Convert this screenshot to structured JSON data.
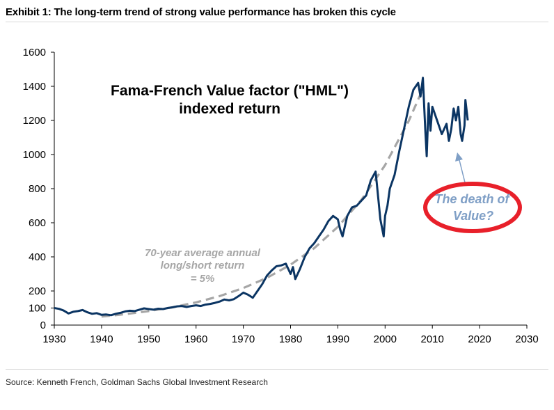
{
  "header": {
    "exhibit_title": "Exhibit 1: The long-term trend of strong value performance has broken this cycle"
  },
  "footer": {
    "source": "Source: Kenneth French, Goldman Sachs Global Investment Research"
  },
  "colors": {
    "series": "#0b3563",
    "trend": "#a6a6a6",
    "circle": "#e8202a",
    "arrow_and_note": "#7f9fc6"
  },
  "chart_data": {
    "type": "line",
    "title_lines": [
      "Fama-French Value factor (\"HML\")",
      "indexed return"
    ],
    "xlabel": "",
    "ylabel": "",
    "xlim": [
      1930,
      2030
    ],
    "ylim": [
      0,
      1600
    ],
    "x_ticks": [
      1930,
      1940,
      1950,
      1960,
      1970,
      1980,
      1990,
      2000,
      2010,
      2020,
      2030
    ],
    "y_ticks": [
      0,
      100,
      200,
      400,
      600,
      800,
      1000,
      1200,
      1400,
      1600
    ],
    "grid": false,
    "legend": "none",
    "series": [
      {
        "style": "solid",
        "points": [
          [
            1930,
            100
          ],
          [
            1931,
            95
          ],
          [
            1932,
            85
          ],
          [
            1933,
            68
          ],
          [
            1934,
            78
          ],
          [
            1935,
            82
          ],
          [
            1936,
            88
          ],
          [
            1937,
            75
          ],
          [
            1938,
            66
          ],
          [
            1939,
            70
          ],
          [
            1940,
            60
          ],
          [
            1941,
            62
          ],
          [
            1942,
            58
          ],
          [
            1943,
            66
          ],
          [
            1944,
            72
          ],
          [
            1945,
            80
          ],
          [
            1946,
            84
          ],
          [
            1947,
            82
          ],
          [
            1948,
            90
          ],
          [
            1949,
            98
          ],
          [
            1950,
            94
          ],
          [
            1951,
            90
          ],
          [
            1952,
            96
          ],
          [
            1953,
            94
          ],
          [
            1954,
            100
          ],
          [
            1955,
            104
          ],
          [
            1956,
            110
          ],
          [
            1957,
            112
          ],
          [
            1958,
            106
          ],
          [
            1959,
            112
          ],
          [
            1960,
            116
          ],
          [
            1961,
            112
          ],
          [
            1962,
            120
          ],
          [
            1963,
            124
          ],
          [
            1964,
            130
          ],
          [
            1965,
            138
          ],
          [
            1966,
            150
          ],
          [
            1967,
            145
          ],
          [
            1968,
            152
          ],
          [
            1969,
            170
          ],
          [
            1970,
            190
          ],
          [
            1971,
            178
          ],
          [
            1972,
            160
          ],
          [
            1973,
            200
          ],
          [
            1974,
            240
          ],
          [
            1975,
            290
          ],
          [
            1976,
            320
          ],
          [
            1977,
            345
          ],
          [
            1978,
            350
          ],
          [
            1979,
            360
          ],
          [
            1980,
            300
          ],
          [
            1980.5,
            340
          ],
          [
            1981,
            270
          ],
          [
            1982,
            330
          ],
          [
            1983,
            400
          ],
          [
            1984,
            450
          ],
          [
            1985,
            480
          ],
          [
            1986,
            520
          ],
          [
            1987,
            560
          ],
          [
            1988,
            610
          ],
          [
            1989,
            640
          ],
          [
            1990,
            620
          ],
          [
            1990.5,
            560
          ],
          [
            1991,
            520
          ],
          [
            1992,
            640
          ],
          [
            1993,
            690
          ],
          [
            1994,
            700
          ],
          [
            1995,
            730
          ],
          [
            1996,
            760
          ],
          [
            1997,
            850
          ],
          [
            1998,
            900
          ],
          [
            1999,
            620
          ],
          [
            1999.7,
            520
          ],
          [
            2000,
            640
          ],
          [
            2000.5,
            700
          ],
          [
            2001,
            800
          ],
          [
            2002,
            880
          ],
          [
            2003,
            1020
          ],
          [
            2004,
            1150
          ],
          [
            2005,
            1280
          ],
          [
            2006,
            1380
          ],
          [
            2007,
            1420
          ],
          [
            2007.5,
            1340
          ],
          [
            2008,
            1450
          ],
          [
            2008.5,
            1150
          ],
          [
            2008.8,
            990
          ],
          [
            2009.2,
            1300
          ],
          [
            2009.6,
            1140
          ],
          [
            2010,
            1280
          ],
          [
            2011,
            1200
          ],
          [
            2012,
            1120
          ],
          [
            2013,
            1180
          ],
          [
            2013.5,
            1080
          ],
          [
            2014,
            1150
          ],
          [
            2014.5,
            1270
          ],
          [
            2015,
            1200
          ],
          [
            2015.5,
            1280
          ],
          [
            2016,
            1120
          ],
          [
            2016.3,
            1080
          ],
          [
            2016.8,
            1170
          ],
          [
            2017,
            1320
          ],
          [
            2017.5,
            1200
          ]
        ]
      },
      {
        "style": "dashed",
        "points": [
          [
            1940,
            50
          ],
          [
            1945,
            64
          ],
          [
            1950,
            82
          ],
          [
            1955,
            104
          ],
          [
            1960,
            133
          ],
          [
            1965,
            170
          ],
          [
            1970,
            217
          ],
          [
            1975,
            277
          ],
          [
            1980,
            354
          ],
          [
            1985,
            451
          ],
          [
            1990,
            576
          ],
          [
            1995,
            735
          ],
          [
            2000,
            938
          ],
          [
            2005,
            1197
          ],
          [
            2008,
            1385
          ]
        ]
      }
    ],
    "annotations": [
      {
        "text_lines": [
          "70-year average annual",
          "long/short return",
          "= 5%"
        ]
      },
      {
        "text_lines": [
          "The death of",
          "Value?"
        ]
      }
    ]
  }
}
